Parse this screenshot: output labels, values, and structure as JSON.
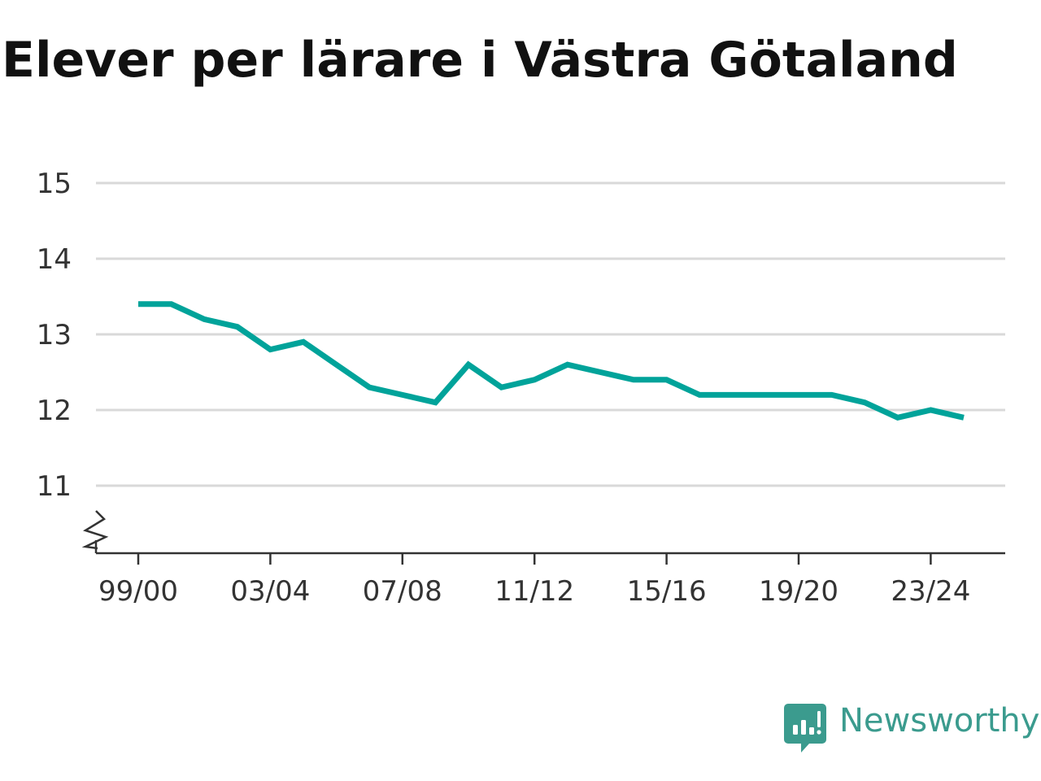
{
  "chart_data": {
    "type": "line",
    "title": "Elever per lärare i Västra Götaland",
    "xlabel": "",
    "ylabel": "",
    "ylim": [
      10.2,
      15
    ],
    "yticks": [
      "15",
      "14",
      "13",
      "12",
      "11"
    ],
    "ytick_values": [
      15,
      14,
      13,
      12,
      11
    ],
    "y_axis_break": true,
    "grid": true,
    "x": [
      "99/00",
      "00/01",
      "01/02",
      "02/03",
      "03/04",
      "04/05",
      "05/06",
      "06/07",
      "07/08",
      "08/09",
      "09/10",
      "10/11",
      "11/12",
      "12/13",
      "13/14",
      "14/15",
      "15/16",
      "16/17",
      "17/18",
      "18/19",
      "19/20",
      "20/21",
      "21/22",
      "22/23",
      "23/24",
      "24/25"
    ],
    "xtick_labels": [
      "99/00",
      "03/04",
      "07/08",
      "11/12",
      "15/16",
      "19/20",
      "23/24"
    ],
    "series": [
      {
        "color": "#00a39a",
        "values": [
          13.4,
          13.4,
          13.2,
          13.1,
          12.8,
          12.9,
          12.6,
          12.3,
          12.2,
          12.1,
          12.6,
          12.3,
          12.4,
          12.6,
          12.5,
          12.4,
          12.4,
          12.2,
          12.2,
          12.2,
          12.2,
          12.2,
          12.1,
          11.9,
          12.0,
          11.9
        ]
      }
    ]
  },
  "brand": {
    "name": "Newsworthy",
    "icon": "newsworthy-logo-icon",
    "color": "#3b9b8e"
  }
}
